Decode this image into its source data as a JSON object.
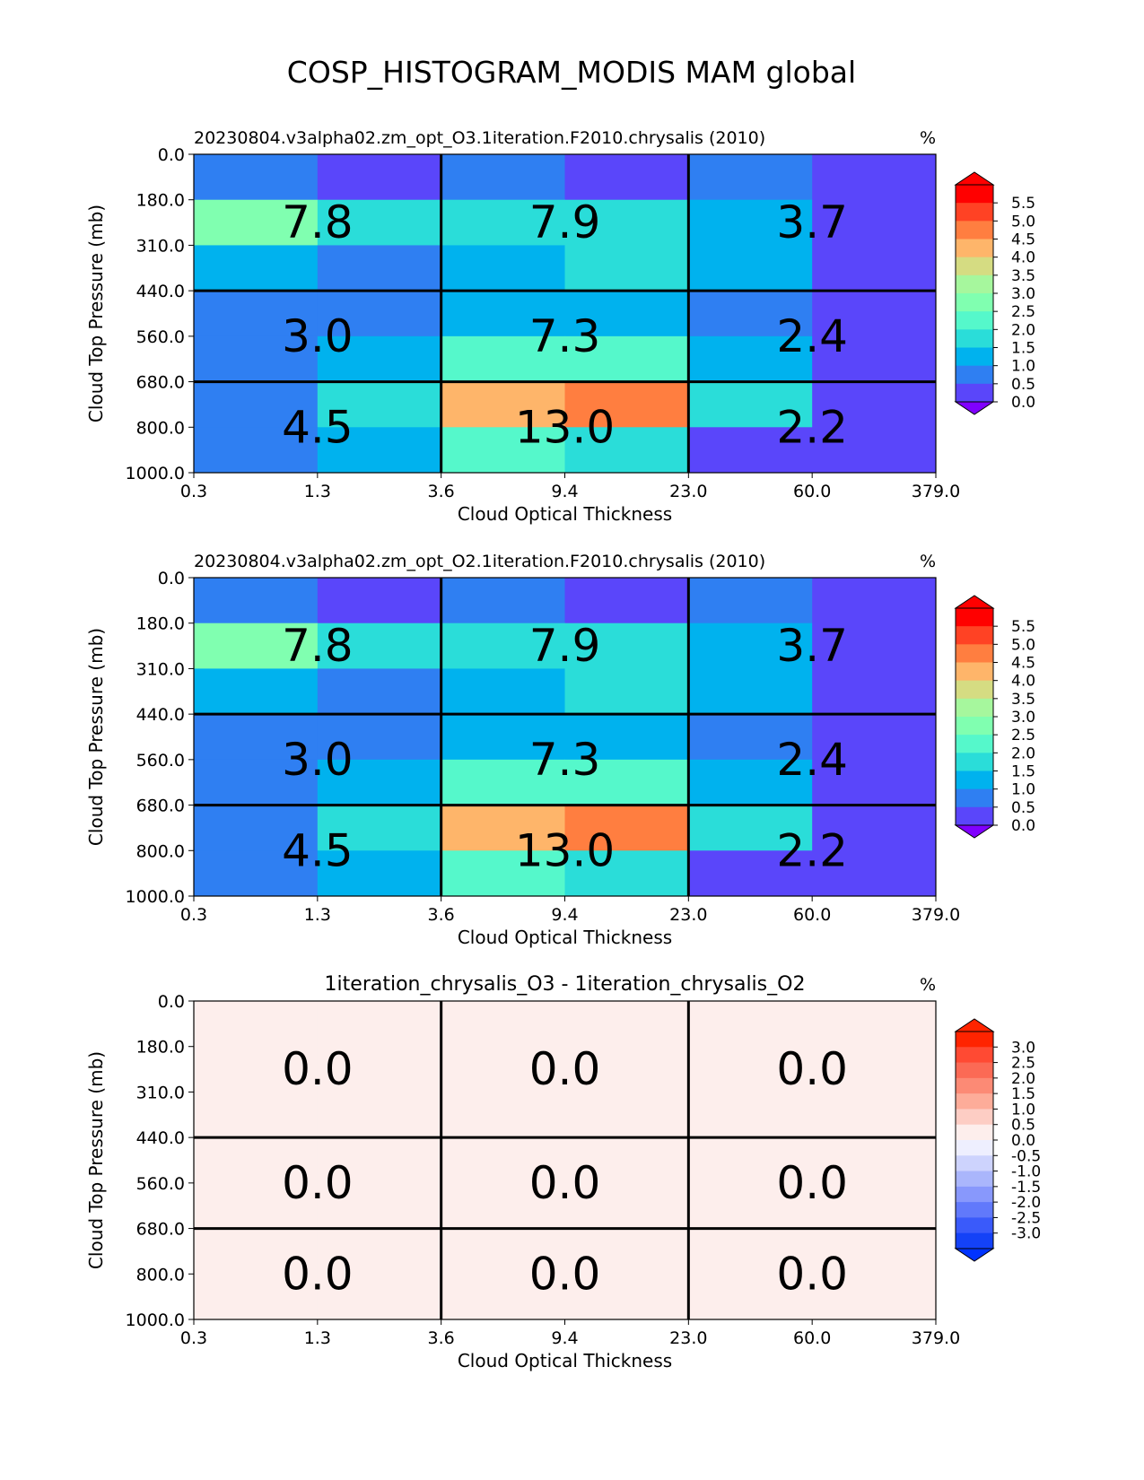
{
  "figure": {
    "title": "COSP_HISTOGRAM_MODIS MAM global"
  },
  "chart_data": [
    {
      "type": "heatmap",
      "title": "20230804.v3alpha02.zm_opt_O3.1iteration.F2010.chrysalis (2010)",
      "units": "%",
      "xlabel": "Cloud Optical Thickness",
      "ylabel": "Cloud Top Pressure (mb)",
      "x_ticks": [
        "0.3",
        "1.3",
        "3.6",
        "9.4",
        "23.0",
        "60.0",
        "379.0"
      ],
      "y_ticks": [
        "0.0",
        "180.0",
        "310.0",
        "440.0",
        "560.0",
        "680.0",
        "800.0",
        "1000.0"
      ],
      "cell_colors": [
        [
          "#2f7ff2",
          "#5a46fa",
          "#2f7ff2",
          "#5a46fa",
          "#2f7ff2",
          "#5a46fa"
        ],
        [
          "#80ffb0",
          "#2addd9",
          "#2addd9",
          "#2addd9",
          "#00b2ee",
          "#5a46fa"
        ],
        [
          "#00b2ee",
          "#2f7ff2",
          "#00b2ee",
          "#2addd9",
          "#00b2ee",
          "#5a46fa"
        ],
        [
          "#2f7ff2",
          "#2f7ff2",
          "#00b2ee",
          "#00b2ee",
          "#2f7ff2",
          "#5a46fa"
        ],
        [
          "#2f7ff2",
          "#00b2ee",
          "#55f8cb",
          "#55f8cb",
          "#00b2ee",
          "#5a46fa"
        ],
        [
          "#2f7ff2",
          "#2addd9",
          "#feb56a",
          "#ff7e40",
          "#2addd9",
          "#5a46fa"
        ],
        [
          "#2f7ff2",
          "#00b2ee",
          "#55f8cb",
          "#2addd9",
          "#5a46fa",
          "#5a46fa"
        ]
      ],
      "box_values": [
        [
          "7.8",
          "7.9",
          "3.7"
        ],
        [
          "3.0",
          "7.3",
          "2.4"
        ],
        [
          "4.5",
          "13.0",
          "2.2"
        ]
      ],
      "colorbar": {
        "ticks": [
          "5.5",
          "5.0",
          "4.5",
          "4.0",
          "3.5",
          "3.0",
          "2.5",
          "2.0",
          "1.5",
          "1.0",
          "0.5",
          "0.0"
        ],
        "colors": [
          "#ff0000",
          "#ff4224",
          "#ff7e40",
          "#feb56a",
          "#d5dc82",
          "#a6f79d",
          "#80ffb0",
          "#55f8cb",
          "#2addd9",
          "#00b2ee",
          "#2f7ff2",
          "#5a46fa"
        ],
        "under_color": "#8000ff",
        "over_color": "#ff0000"
      }
    },
    {
      "type": "heatmap",
      "title": "20230804.v3alpha02.zm_opt_O2.1iteration.F2010.chrysalis (2010)",
      "units": "%",
      "xlabel": "Cloud Optical Thickness",
      "ylabel": "Cloud Top Pressure (mb)",
      "x_ticks": [
        "0.3",
        "1.3",
        "3.6",
        "9.4",
        "23.0",
        "60.0",
        "379.0"
      ],
      "y_ticks": [
        "0.0",
        "180.0",
        "310.0",
        "440.0",
        "560.0",
        "680.0",
        "800.0",
        "1000.0"
      ],
      "cell_colors": [
        [
          "#2f7ff2",
          "#5a46fa",
          "#2f7ff2",
          "#5a46fa",
          "#2f7ff2",
          "#5a46fa"
        ],
        [
          "#80ffb0",
          "#2addd9",
          "#2addd9",
          "#2addd9",
          "#00b2ee",
          "#5a46fa"
        ],
        [
          "#00b2ee",
          "#2f7ff2",
          "#00b2ee",
          "#2addd9",
          "#00b2ee",
          "#5a46fa"
        ],
        [
          "#2f7ff2",
          "#2f7ff2",
          "#00b2ee",
          "#00b2ee",
          "#2f7ff2",
          "#5a46fa"
        ],
        [
          "#2f7ff2",
          "#00b2ee",
          "#55f8cb",
          "#55f8cb",
          "#00b2ee",
          "#5a46fa"
        ],
        [
          "#2f7ff2",
          "#2addd9",
          "#feb56a",
          "#ff7e40",
          "#2addd9",
          "#5a46fa"
        ],
        [
          "#2f7ff2",
          "#00b2ee",
          "#55f8cb",
          "#2addd9",
          "#5a46fa",
          "#5a46fa"
        ]
      ],
      "box_values": [
        [
          "7.8",
          "7.9",
          "3.7"
        ],
        [
          "3.0",
          "7.3",
          "2.4"
        ],
        [
          "4.5",
          "13.0",
          "2.2"
        ]
      ],
      "colorbar": {
        "ticks": [
          "5.5",
          "5.0",
          "4.5",
          "4.0",
          "3.5",
          "3.0",
          "2.5",
          "2.0",
          "1.5",
          "1.0",
          "0.5",
          "0.0"
        ],
        "colors": [
          "#ff0000",
          "#ff4224",
          "#ff7e40",
          "#feb56a",
          "#d5dc82",
          "#a6f79d",
          "#80ffb0",
          "#55f8cb",
          "#2addd9",
          "#00b2ee",
          "#2f7ff2",
          "#5a46fa"
        ],
        "under_color": "#8000ff",
        "over_color": "#ff0000"
      }
    },
    {
      "type": "heatmap",
      "title": "1iteration_chrysalis_O3 - 1iteration_chrysalis_O2",
      "units": "%",
      "xlabel": "Cloud Optical Thickness",
      "ylabel": "Cloud Top Pressure (mb)",
      "x_ticks": [
        "0.3",
        "1.3",
        "3.6",
        "9.4",
        "23.0",
        "60.0",
        "379.0"
      ],
      "y_ticks": [
        "0.0",
        "180.0",
        "310.0",
        "440.0",
        "560.0",
        "680.0",
        "800.0",
        "1000.0"
      ],
      "cell_colors": [
        [
          "#fdeeec",
          "#fdeeec",
          "#fdeeec",
          "#fdeeec",
          "#fdeeec",
          "#fdeeec"
        ],
        [
          "#fdeeec",
          "#fdeeec",
          "#fdeeec",
          "#fdeeec",
          "#fdeeec",
          "#fdeeec"
        ],
        [
          "#fdeeec",
          "#fdeeec",
          "#fdeeec",
          "#fdeeec",
          "#fdeeec",
          "#fdeeec"
        ],
        [
          "#fdeeec",
          "#fdeeec",
          "#fdeeec",
          "#fdeeec",
          "#fdeeec",
          "#fdeeec"
        ],
        [
          "#fdeeec",
          "#fdeeec",
          "#fdeeec",
          "#fdeeec",
          "#fdeeec",
          "#fdeeec"
        ],
        [
          "#fdeeec",
          "#fdeeec",
          "#fdeeec",
          "#fdeeec",
          "#fdeeec",
          "#fdeeec"
        ],
        [
          "#fdeeec",
          "#fdeeec",
          "#fdeeec",
          "#fdeeec",
          "#fdeeec",
          "#fdeeec"
        ]
      ],
      "box_values": [
        [
          "0.0",
          "0.0",
          "0.0"
        ],
        [
          "0.0",
          "0.0",
          "0.0"
        ],
        [
          "0.0",
          "0.0",
          "0.0"
        ]
      ],
      "colorbar": {
        "ticks": [
          "3.0",
          "2.5",
          "2.0",
          "1.5",
          "1.0",
          "0.5",
          "0.0",
          "-0.5",
          "-1.0",
          "-1.5",
          "-2.0",
          "-2.5",
          "-3.0"
        ],
        "colors": [
          "#ff2400",
          "#ff4a33",
          "#fb6a55",
          "#fc8a75",
          "#fdac99",
          "#fdcdc4",
          "#fdeeec",
          "#eeeffe",
          "#cdd3fd",
          "#aab6fc",
          "#8898fc",
          "#6179fb",
          "#3a5afa",
          "#1442f7"
        ],
        "under_color": "#0033ff",
        "over_color": "#ff2400"
      }
    }
  ]
}
